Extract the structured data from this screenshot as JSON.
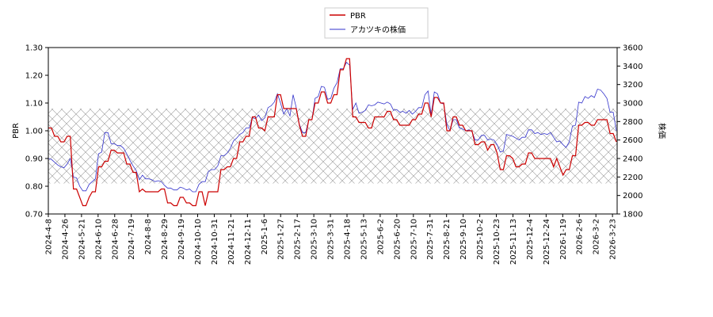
{
  "chart_data": {
    "type": "line",
    "title": "",
    "xlabel": "",
    "ylabel_left": "PBR",
    "ylabel_right": "株価",
    "ylim_left": [
      0.7,
      1.3
    ],
    "ylim_right": [
      1800,
      3600
    ],
    "yticks_left": [
      "0.70",
      "0.80",
      "0.90",
      "1.00",
      "1.10",
      "1.20",
      "1.30"
    ],
    "yticks_right": [
      "1800",
      "2000",
      "2200",
      "2400",
      "2600",
      "2800",
      "3000",
      "3200",
      "3400",
      "3600"
    ],
    "x_ticks": [
      "2024-4-8",
      "2024-4-26",
      "2024-5-21",
      "2024-6-10",
      "2024-6-28",
      "2024-7-19",
      "2024-8-8",
      "2024-8-29",
      "2024-9-19",
      "2024-10-10",
      "2024-10-31",
      "2024-11-21",
      "2024-12-11",
      "2025-1-6",
      "2025-1-27",
      "2025-2-17",
      "2025-3-10",
      "2025-3-31",
      "2025-4-18",
      "2025-5-13",
      "2025-6-2",
      "2025-6-20",
      "2025-7-10",
      "2025-7-31",
      "2025-8-21",
      "2025-9-10",
      "2025-10-2",
      "2025-10-23",
      "2025-11-13",
      "2025-12-4",
      "2025-12-24",
      "2026-1-19",
      "2026-2-6",
      "2026-3-2",
      "2026-3-23"
    ],
    "legend_placement": "top-center",
    "band": {
      "axis": "left",
      "from": 0.81,
      "to": 1.08,
      "pattern": "crosshatch"
    },
    "series": [
      {
        "name": "PBR",
        "axis": "left",
        "color": "#cc0000",
        "values": [
          1.01,
          1.01,
          0.98,
          0.98,
          0.96,
          0.96,
          0.98,
          0.98,
          0.79,
          0.79,
          0.76,
          0.73,
          0.73,
          0.76,
          0.78,
          0.78,
          0.87,
          0.87,
          0.89,
          0.89,
          0.93,
          0.93,
          0.92,
          0.92,
          0.92,
          0.88,
          0.88,
          0.85,
          0.85,
          0.78,
          0.79,
          0.78,
          0.78,
          0.78,
          0.78,
          0.78,
          0.79,
          0.79,
          0.74,
          0.74,
          0.73,
          0.73,
          0.76,
          0.76,
          0.74,
          0.74,
          0.73,
          0.73,
          0.78,
          0.78,
          0.73,
          0.78,
          0.78,
          0.78,
          0.78,
          0.86,
          0.86,
          0.87,
          0.87,
          0.9,
          0.9,
          0.96,
          0.96,
          0.98,
          0.98,
          1.05,
          1.05,
          1.01,
          1.01,
          1.0,
          1.05,
          1.05,
          1.05,
          1.13,
          1.13,
          1.08,
          1.08,
          1.08,
          1.08,
          1.08,
          1.02,
          0.98,
          0.98,
          1.04,
          1.04,
          1.1,
          1.1,
          1.14,
          1.14,
          1.1,
          1.1,
          1.13,
          1.13,
          1.22,
          1.22,
          1.26,
          1.26,
          1.05,
          1.05,
          1.03,
          1.03,
          1.03,
          1.01,
          1.01,
          1.05,
          1.05,
          1.05,
          1.05,
          1.07,
          1.07,
          1.04,
          1.04,
          1.02,
          1.02,
          1.02,
          1.02,
          1.04,
          1.04,
          1.06,
          1.06,
          1.1,
          1.1,
          1.05,
          1.12,
          1.12,
          1.1,
          1.1,
          1.0,
          1.0,
          1.05,
          1.05,
          1.02,
          1.02,
          1.0,
          1.0,
          1.0,
          0.95,
          0.95,
          0.96,
          0.96,
          0.93,
          0.95,
          0.95,
          0.92,
          0.86,
          0.86,
          0.91,
          0.91,
          0.9,
          0.87,
          0.87,
          0.88,
          0.88,
          0.92,
          0.92,
          0.9,
          0.9,
          0.9,
          0.9,
          0.9,
          0.9,
          0.87,
          0.9,
          0.87,
          0.84,
          0.86,
          0.86,
          0.91,
          0.91,
          1.02,
          1.02,
          1.03,
          1.03,
          1.02,
          1.02,
          1.04,
          1.04,
          1.04,
          1.04,
          0.99,
          0.99,
          0.96
        ]
      },
      {
        "name": "アカツキの株価",
        "axis": "right",
        "color": "#3333cc",
        "values": [
          2400,
          2390,
          2360,
          2330,
          2310,
          2300,
          2340,
          2400,
          2200,
          2190,
          2100,
          2050,
          2050,
          2120,
          2150,
          2180,
          2450,
          2470,
          2680,
          2680,
          2560,
          2560,
          2540,
          2540,
          2510,
          2450,
          2380,
          2320,
          2270,
          2170,
          2220,
          2180,
          2180,
          2170,
          2150,
          2160,
          2150,
          2110,
          2080,
          2080,
          2060,
          2060,
          2090,
          2080,
          2060,
          2070,
          2040,
          2040,
          2120,
          2150,
          2150,
          2260,
          2280,
          2280,
          2320,
          2430,
          2430,
          2460,
          2510,
          2590,
          2620,
          2660,
          2680,
          2730,
          2730,
          2840,
          2830,
          2870,
          2810,
          2840,
          2950,
          2970,
          3010,
          3100,
          3000,
          2880,
          2940,
          2860,
          3090,
          2950,
          2770,
          2680,
          2680,
          2820,
          2820,
          3050,
          3070,
          3180,
          3170,
          3040,
          3050,
          3160,
          3220,
          3370,
          3370,
          3440,
          3410,
          2930,
          3000,
          2890,
          2900,
          2920,
          2980,
          2970,
          2980,
          3010,
          3000,
          2990,
          3010,
          2990,
          2920,
          2930,
          2900,
          2910,
          2890,
          2920,
          2880,
          2910,
          2950,
          2950,
          3090,
          3130,
          2870,
          3120,
          3100,
          3000,
          2990,
          2770,
          2700,
          2820,
          2820,
          2730,
          2720,
          2700,
          2710,
          2690,
          2600,
          2600,
          2650,
          2650,
          2600,
          2610,
          2600,
          2550,
          2470,
          2480,
          2660,
          2650,
          2640,
          2620,
          2600,
          2630,
          2630,
          2710,
          2710,
          2670,
          2680,
          2660,
          2670,
          2660,
          2680,
          2630,
          2580,
          2590,
          2550,
          2520,
          2580,
          2750,
          2760,
          3010,
          3000,
          3070,
          3050,
          3080,
          3060,
          3150,
          3140,
          3100,
          3050,
          2900,
          2900,
          2700
        ]
      }
    ]
  }
}
